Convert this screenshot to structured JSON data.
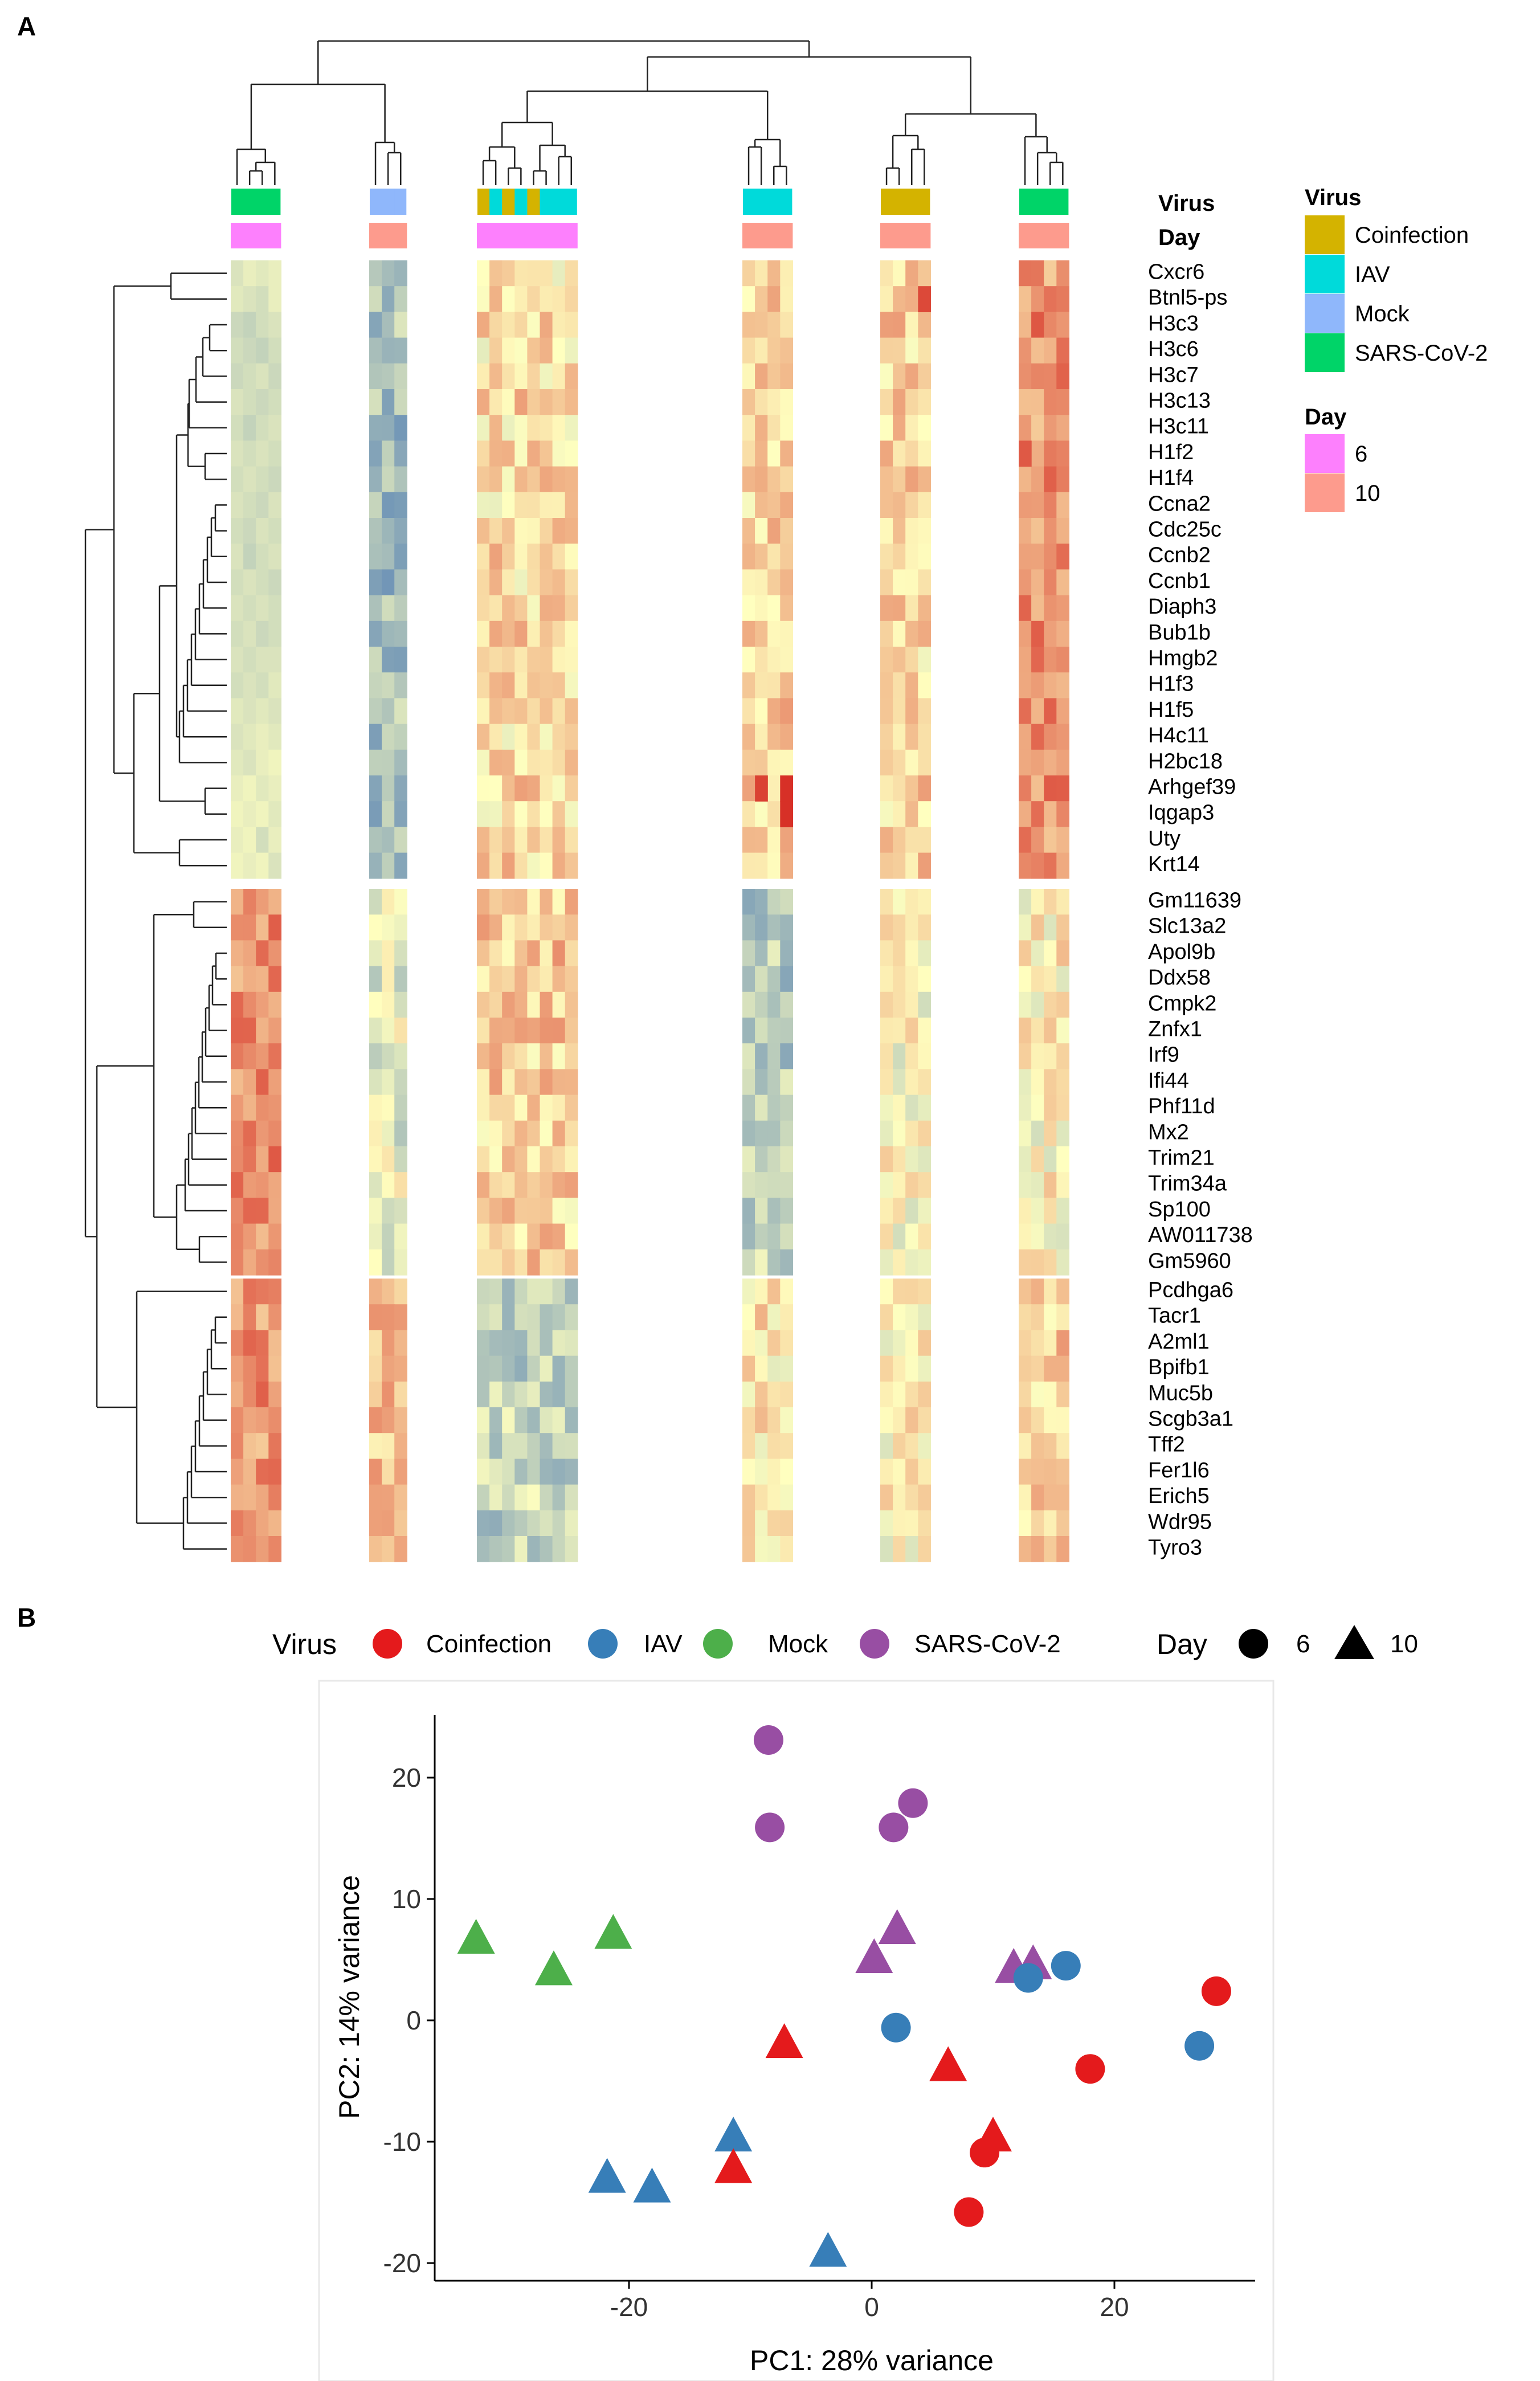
{
  "panels": {
    "a_label": "A",
    "b_label": "B"
  },
  "chart_data": [
    {
      "type": "heatmap",
      "id": "A",
      "annotation_tracks": {
        "virus_label": "Virus",
        "day_label": "Day"
      },
      "legend_virus": {
        "title": "Virus",
        "entries": [
          {
            "label": "Coinfection",
            "color": "#d4b300"
          },
          {
            "label": "IAV",
            "color": "#00dada"
          },
          {
            "label": "Mock",
            "color": "#8fb7fb"
          },
          {
            "label": "SARS-CoV-2",
            "color": "#00d468"
          }
        ]
      },
      "legend_day": {
        "title": "Day",
        "entries": [
          {
            "label": "6",
            "color": "#fd80fd"
          },
          {
            "label": "10",
            "color": "#fd9b8d"
          }
        ]
      },
      "column_groups": [
        {
          "virus": [
            "SARS-CoV-2",
            "SARS-CoV-2",
            "SARS-CoV-2",
            "SARS-CoV-2"
          ],
          "day": "6"
        },
        {
          "virus": [
            "Mock",
            "Mock",
            "Mock"
          ],
          "day": "10"
        },
        {
          "virus": [
            "Coinfection",
            "IAV",
            "Coinfection",
            "IAV",
            "Coinfection",
            "IAV",
            "IAV",
            "IAV"
          ],
          "day": "6"
        },
        {
          "virus": [
            "IAV",
            "IAV",
            "IAV",
            "IAV"
          ],
          "day": "10"
        },
        {
          "virus": [
            "Coinfection",
            "Coinfection",
            "Coinfection",
            "Coinfection"
          ],
          "day": "10"
        },
        {
          "virus": [
            "SARS-CoV-2",
            "SARS-CoV-2",
            "SARS-CoV-2",
            "SARS-CoV-2"
          ],
          "day": "10"
        }
      ],
      "row_blocks": [
        {
          "genes": [
            "Cxcr6",
            "Btnl5-ps",
            "H3c3",
            "H3c6",
            "H3c7",
            "H3c13",
            "H3c11",
            "H1f2",
            "H1f4",
            "Ccna2",
            "Cdc25c",
            "Ccnb2",
            "Ccnb1",
            "Diaph3",
            "Bub1b",
            "Hmgb2",
            "H1f3",
            "H1f5",
            "H4c11",
            "H2bc18",
            "Arhgef39",
            "Iqgap3",
            "Uty",
            "Krt14"
          ],
          "group_levels": [
            -0.6,
            -1.2,
            0.4,
            0.5,
            0.5,
            1.3
          ],
          "values": [
            [
              -0.5,
              -0.3,
              -0.4,
              -0.3
            ],
            [
              -0.4,
              -0.5,
              -0.6,
              -0.3
            ],
            [
              -0.7,
              -0.8,
              -0.6,
              -0.5
            ],
            [
              -0.6,
              -0.7,
              -0.8,
              -0.6
            ],
            [
              -0.7,
              -0.6,
              -0.5,
              -0.7
            ],
            [
              -0.5,
              -0.6,
              -0.7,
              -0.6
            ],
            [
              -0.6,
              -0.8,
              -0.6,
              -0.5
            ],
            [
              -0.5,
              -0.6,
              -0.5,
              -0.6
            ],
            [
              -0.6,
              -0.5,
              -0.6,
              -0.7
            ],
            [
              -0.5,
              -0.6,
              -0.7,
              -0.5
            ],
            [
              -0.6,
              -0.7,
              -0.5,
              -0.6
            ],
            [
              -0.5,
              -0.8,
              -0.6,
              -0.5
            ],
            [
              -0.6,
              -0.5,
              -0.6,
              -0.7
            ],
            [
              -0.5,
              -0.6,
              -0.5,
              -0.6
            ],
            [
              -0.6,
              -0.5,
              -0.7,
              -0.6
            ],
            [
              -0.5,
              -0.6,
              -0.5,
              -0.5
            ],
            [
              -0.6,
              -0.5,
              -0.6,
              -0.4
            ],
            [
              -0.4,
              -0.5,
              -0.4,
              -0.5
            ],
            [
              -0.5,
              -0.4,
              -0.3,
              -0.4
            ],
            [
              -0.4,
              -0.5,
              -0.3,
              -0.2
            ],
            [
              -0.3,
              -0.2,
              -0.4,
              -0.3
            ],
            [
              -0.2,
              -0.3,
              -0.2,
              -0.4
            ],
            [
              -0.3,
              -0.2,
              -0.6,
              -0.3
            ],
            [
              -0.2,
              -0.3,
              -0.2,
              -0.5
            ]
          ]
        },
        {
          "genes": [
            "Gm11639",
            "Slc13a2",
            "Apol9b",
            "Ddx58",
            "Cmpk2",
            "Znfx1",
            "Irf9",
            "Ifi44",
            "Phf11d",
            "Mx2",
            "Trim21",
            "Trim34a",
            "Sp100",
            "AW011738",
            "Gm5960"
          ],
          "group_levels": [
            1.4,
            -0.3,
            0.6,
            -0.9,
            0.0,
            0.1
          ]
        },
        {
          "genes": [
            "Pcdhga6",
            "Tacr1",
            "A2ml1",
            "Bpifb1",
            "Muc5b",
            "Scgb3a1",
            "Tff2",
            "Fer1l6",
            "Erich5",
            "Wdr95",
            "Tyro3"
          ],
          "group_levels": [
            1.3,
            0.8,
            -0.8,
            0.3,
            0.1,
            0.6
          ]
        }
      ],
      "color_scale": {
        "low": "#4575b4",
        "mid": "#ffffbf",
        "high": "#d73027",
        "range": [
          -2.5,
          2.5
        ]
      }
    },
    {
      "type": "scatter",
      "id": "B",
      "xlabel": "PC1: 28% variance",
      "ylabel": "PC2: 14% variance",
      "xlim": [
        -36,
        32
      ],
      "ylim": [
        -21,
        25
      ],
      "xticks": [
        -20,
        0,
        20
      ],
      "yticks": [
        -20,
        -10,
        0,
        10,
        20
      ],
      "legend_virus": {
        "title": "Virus",
        "entries": [
          {
            "label": "Coinfection",
            "color": "#e41a1c"
          },
          {
            "label": "IAV",
            "color": "#377eb8"
          },
          {
            "label": "Mock",
            "color": "#4daf4a"
          },
          {
            "label": "SARS-CoV-2",
            "color": "#984ea3"
          }
        ]
      },
      "legend_day": {
        "title": "Day",
        "entries": [
          {
            "label": "6",
            "shape": "circle"
          },
          {
            "label": "10",
            "shape": "triangle"
          }
        ]
      },
      "points": [
        {
          "x": -8.5,
          "y": 23.1,
          "virus": "SARS-CoV-2",
          "day": "6"
        },
        {
          "x": -8.4,
          "y": 15.9,
          "virus": "SARS-CoV-2",
          "day": "6"
        },
        {
          "x": 1.8,
          "y": 15.9,
          "virus": "SARS-CoV-2",
          "day": "6"
        },
        {
          "x": 3.4,
          "y": 17.9,
          "virus": "SARS-CoV-2",
          "day": "6"
        },
        {
          "x": 2.1,
          "y": 7.5,
          "virus": "SARS-CoV-2",
          "day": "10"
        },
        {
          "x": 0.2,
          "y": 5.1,
          "virus": "SARS-CoV-2",
          "day": "10"
        },
        {
          "x": 11.7,
          "y": 4.3,
          "virus": "SARS-CoV-2",
          "day": "10"
        },
        {
          "x": 13.3,
          "y": 4.6,
          "virus": "SARS-CoV-2",
          "day": "10"
        },
        {
          "x": -32.6,
          "y": 6.7,
          "virus": "Mock",
          "day": "10"
        },
        {
          "x": -26.2,
          "y": 4.1,
          "virus": "Mock",
          "day": "10"
        },
        {
          "x": -21.3,
          "y": 7.1,
          "virus": "Mock",
          "day": "10"
        },
        {
          "x": 12.9,
          "y": 3.5,
          "virus": "IAV",
          "day": "6"
        },
        {
          "x": 16.0,
          "y": 4.5,
          "virus": "IAV",
          "day": "6"
        },
        {
          "x": 2.0,
          "y": -0.6,
          "virus": "IAV",
          "day": "6"
        },
        {
          "x": 27.0,
          "y": -2.1,
          "virus": "IAV",
          "day": "6"
        },
        {
          "x": -11.4,
          "y": -9.6,
          "virus": "IAV",
          "day": "10"
        },
        {
          "x": -21.8,
          "y": -13.0,
          "virus": "IAV",
          "day": "10"
        },
        {
          "x": -18.1,
          "y": -13.8,
          "virus": "IAV",
          "day": "10"
        },
        {
          "x": -3.6,
          "y": -19.1,
          "virus": "IAV",
          "day": "10"
        },
        {
          "x": 28.4,
          "y": 2.4,
          "virus": "Coinfection",
          "day": "6"
        },
        {
          "x": 18.0,
          "y": -4.0,
          "virus": "Coinfection",
          "day": "6"
        },
        {
          "x": 9.3,
          "y": -10.9,
          "virus": "Coinfection",
          "day": "6"
        },
        {
          "x": 8.0,
          "y": -15.8,
          "virus": "Coinfection",
          "day": "6"
        },
        {
          "x": -7.2,
          "y": -1.9,
          "virus": "Coinfection",
          "day": "10"
        },
        {
          "x": 6.3,
          "y": -3.8,
          "virus": "Coinfection",
          "day": "10"
        },
        {
          "x": 10.0,
          "y": -9.6,
          "virus": "Coinfection",
          "day": "10"
        },
        {
          "x": -11.4,
          "y": -12.2,
          "virus": "Coinfection",
          "day": "10"
        }
      ]
    }
  ]
}
